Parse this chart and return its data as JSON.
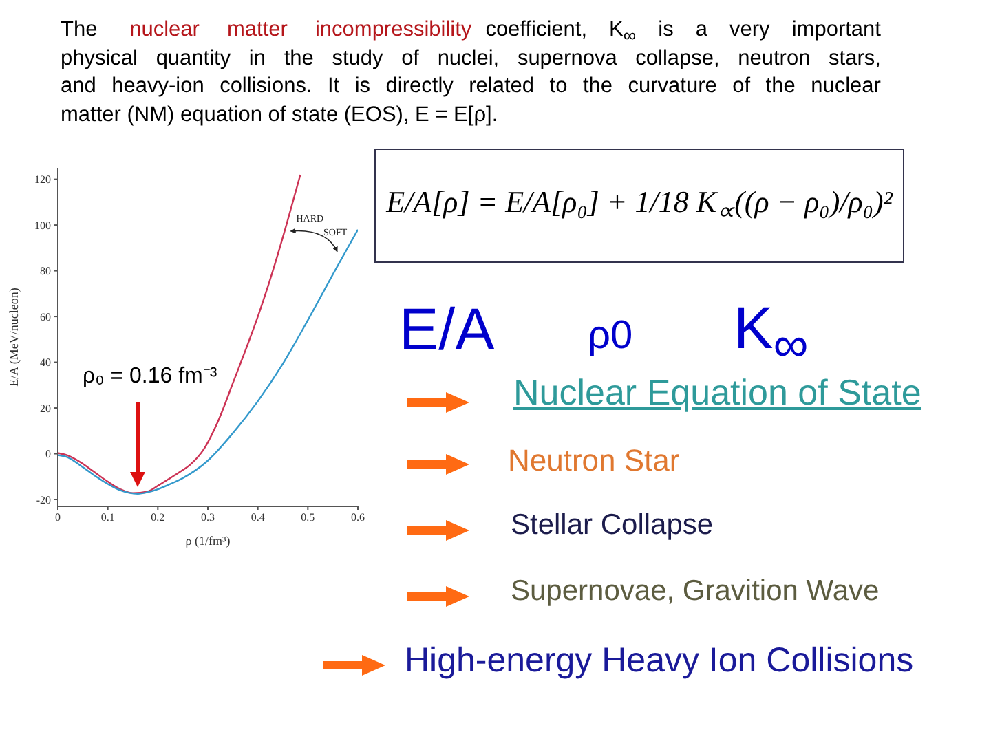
{
  "chart_data": [
    {
      "type": "line",
      "xlabel": "ρ (1/fm³)",
      "ylabel": "E/A (MeV/nucleon)",
      "xlim": [
        0,
        0.6
      ],
      "ylim": [
        -23,
        125
      ],
      "xticks": [
        0,
        0.1,
        0.2,
        0.3,
        0.4,
        0.5,
        0.6
      ],
      "yticks": [
        -20,
        0,
        20,
        40,
        60,
        80,
        100,
        120
      ],
      "series": [
        {
          "name": "HARD",
          "color": "#cc3355",
          "x": [
            0,
            0.02,
            0.045,
            0.07,
            0.1,
            0.125,
            0.15,
            0.18,
            0.2,
            0.22,
            0.245,
            0.264,
            0.292,
            0.32,
            0.352,
            0.38,
            0.4,
            0.43,
            0.457,
            0.485
          ],
          "values": [
            0.3,
            -0.8,
            -3.7,
            -7.5,
            -12.2,
            -15.5,
            -17.2,
            -16.5,
            -14,
            -11.3,
            -7.8,
            -4.9,
            2,
            14,
            32,
            48,
            60,
            80,
            100,
            122
          ]
        },
        {
          "name": "SOFT",
          "color": "#3399cc",
          "x": [
            0,
            0.02,
            0.045,
            0.07,
            0.1,
            0.125,
            0.16,
            0.18,
            0.2,
            0.22,
            0.247,
            0.3,
            0.35,
            0.4,
            0.449,
            0.504,
            0.554,
            0.6
          ],
          "values": [
            -0.6,
            -1.6,
            -5.1,
            -9,
            -13.2,
            -16,
            -17.5,
            -16.8,
            -15.5,
            -13.7,
            -11,
            -3,
            9,
            23,
            39,
            60,
            80,
            98
          ]
        }
      ],
      "annotations": [
        "ρ₀ = 0.16 fm⁻³"
      ]
    },
    {
      "type": "other",
      "annotations": [
        "The",
        "nuclear matter incompressibility",
        "coefficient, K$_{∞}$ is a very important",
        "physical quantity in the study of nuclei, supernova collapse, neutron stars,",
        "and heavy-ion collisions. It is directly related to the curvature of the nuclear",
        "matter (NM) equation of state (EOS), E = E[ρ].",
        "E/A[ρ] = E/A[ρ₀] + 1/18 K$_{∝}$((ρ − ρ₀)/ρ₀)²",
        "E/A",
        "ρ0",
        "K$_{∞}$",
        "Nuclear Equation of State",
        "Neutron Star",
        "Stellar Collapse",
        "Supernovae, Gravition Wave",
        "High-energy Heavy Ion Collisions"
      ]
    }
  ]
}
